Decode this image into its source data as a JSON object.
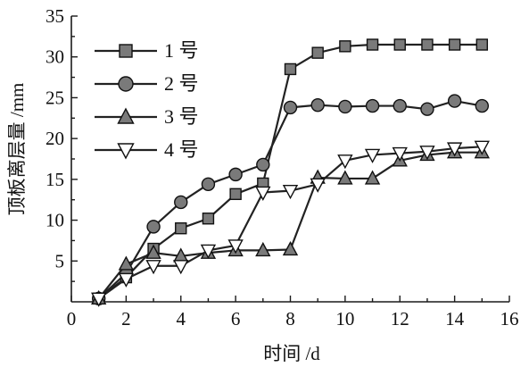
{
  "chart_data": {
    "type": "line",
    "title": "",
    "xlabel": "时间 /d",
    "ylabel": "顶板离层量 /mm",
    "xlim": [
      0,
      16
    ],
    "ylim": [
      0,
      35
    ],
    "xticks": [
      "0",
      "2",
      "4",
      "6",
      "8",
      "10",
      "12",
      "14",
      "16"
    ],
    "yticks": [
      "5",
      "10",
      "15",
      "20",
      "25",
      "30",
      "35"
    ],
    "x_tick_values": [
      0,
      2,
      4,
      6,
      8,
      10,
      12,
      14,
      16
    ],
    "y_tick_values": [
      5,
      10,
      15,
      20,
      25,
      30,
      35
    ],
    "grid": false,
    "legend_position": "top-left",
    "series": [
      {
        "name": "1 号",
        "marker": "square",
        "color": "#444444",
        "x": [
          1,
          2,
          3,
          4,
          5,
          6,
          7,
          8,
          9,
          10,
          11,
          12,
          13,
          14,
          15
        ],
        "y": [
          0.4,
          3.0,
          6.5,
          9.0,
          10.2,
          13.2,
          14.5,
          28.5,
          30.5,
          31.3,
          31.5,
          31.5,
          31.5,
          31.5,
          31.5
        ]
      },
      {
        "name": "2 号",
        "marker": "circle",
        "color": "#444444",
        "x": [
          1,
          2,
          3,
          4,
          5,
          6,
          7,
          8,
          9,
          10,
          11,
          12,
          13,
          14,
          15
        ],
        "y": [
          0.4,
          3.5,
          9.2,
          12.2,
          14.4,
          15.6,
          16.8,
          23.8,
          24.1,
          23.9,
          24.0,
          24.0,
          23.6,
          24.6,
          24.0
        ]
      },
      {
        "name": "3 号",
        "marker": "triangle-up",
        "color": "#444444",
        "x": [
          1,
          2,
          3,
          4,
          5,
          6,
          7,
          8,
          9,
          10,
          11,
          12,
          13,
          14,
          15
        ],
        "y": [
          0.4,
          4.6,
          6.0,
          5.6,
          6.0,
          6.3,
          6.3,
          6.4,
          15.2,
          15.1,
          15.1,
          17.3,
          18.0,
          18.3,
          18.3
        ]
      },
      {
        "name": "4 号",
        "marker": "triangle-down",
        "color": "#444444",
        "x": [
          1,
          2,
          3,
          4,
          5,
          6,
          7,
          8,
          9,
          10,
          11,
          12,
          13,
          14,
          15
        ],
        "y": [
          0.4,
          2.8,
          4.4,
          4.4,
          6.3,
          6.9,
          13.4,
          13.6,
          14.4,
          17.3,
          18.0,
          18.2,
          18.4,
          18.8,
          19.0
        ]
      }
    ]
  }
}
